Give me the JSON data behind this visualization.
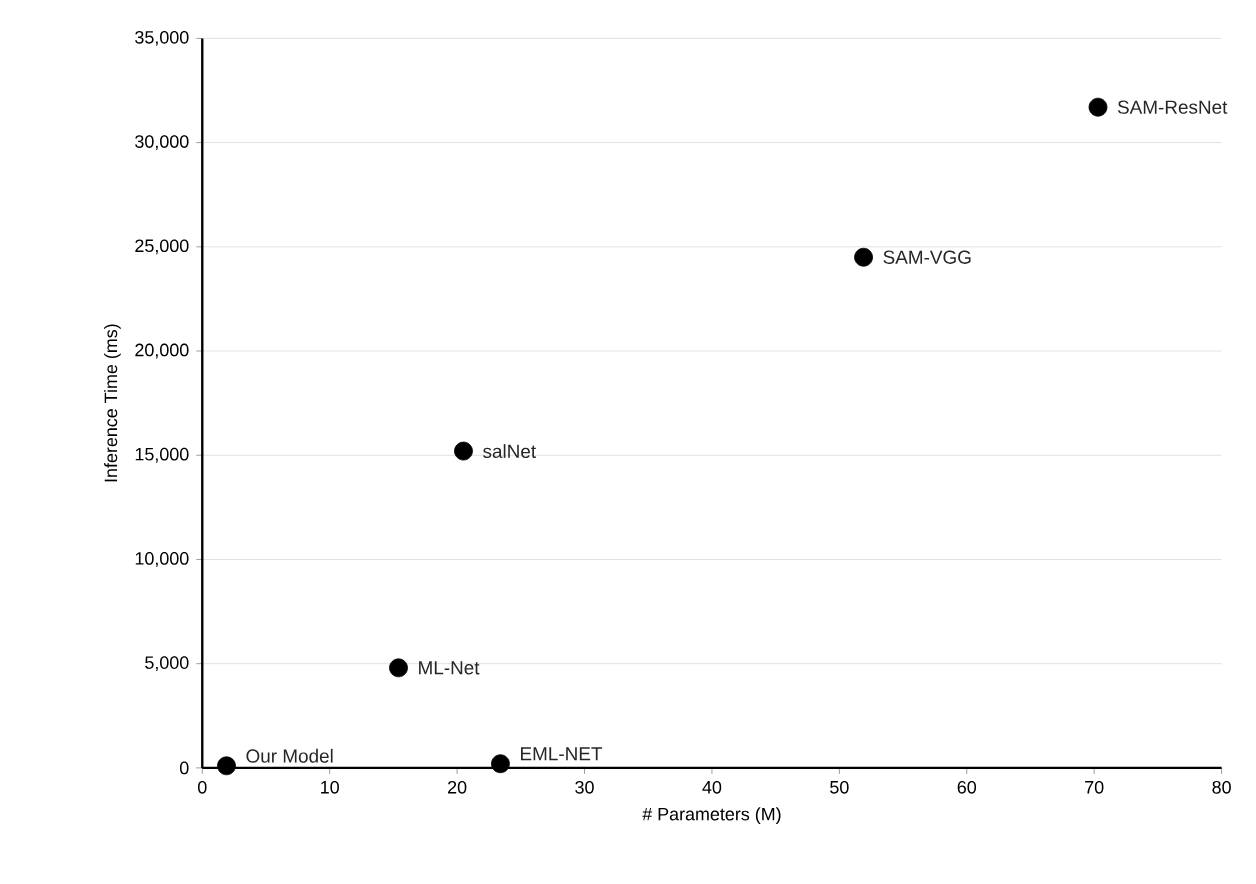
{
  "chart_data": {
    "type": "scatter",
    "xlabel": "# Parameters (M)",
    "ylabel": "Inference Time (ms)",
    "x": [
      1.9,
      23.4,
      15.4,
      20.5,
      51.9,
      70.3
    ],
    "values": [
      100,
      200,
      4800,
      15200,
      24500,
      31700
    ],
    "color": "#000000",
    "marker": "circle",
    "xlim": [
      0,
      80
    ],
    "xticks": [
      0,
      10,
      20,
      30,
      40,
      50,
      60,
      70,
      80
    ],
    "ylim": [
      0,
      35000
    ],
    "yticks": [
      {
        "value": 0,
        "label": "0"
      },
      {
        "value": 5000,
        "label": "5,000"
      },
      {
        "value": 10000,
        "label": "10,000"
      },
      {
        "value": 15000,
        "label": "15,000"
      },
      {
        "value": 20000,
        "label": "20,000"
      },
      {
        "value": 25000,
        "label": "25,000"
      },
      {
        "value": 30000,
        "label": "30,000"
      },
      {
        "value": 35000,
        "label": "35,000"
      }
    ],
    "grid": "y",
    "annotations": [
      {
        "text": "Our Model",
        "x": 1.9,
        "y": 100
      },
      {
        "text": "EML-NET",
        "x": 23.4,
        "y": 200
      },
      {
        "text": "ML-Net",
        "x": 15.4,
        "y": 4800
      },
      {
        "text": "salNet",
        "x": 20.5,
        "y": 15200
      },
      {
        "text": "SAM-VGG",
        "x": 51.9,
        "y": 24500
      },
      {
        "text": "SAM-ResNet",
        "x": 70.3,
        "y": 31700
      }
    ]
  }
}
